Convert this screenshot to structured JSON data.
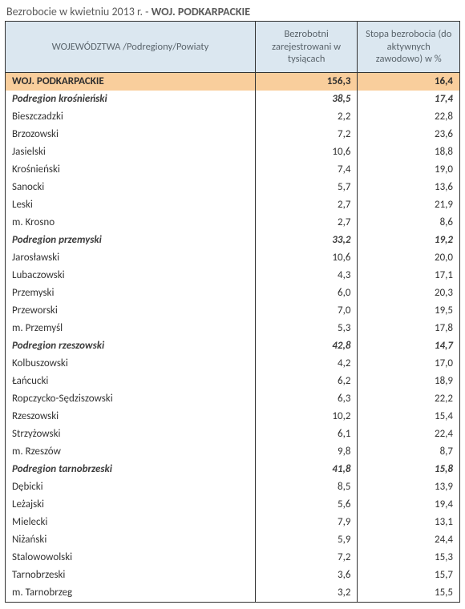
{
  "title_prefix": "Bezrobocie w kwietniu 2013 r. - ",
  "title_region": "WOJ. PODKARPACKIE",
  "columns": [
    "WOJEWÓDZTWA /Podregiony/Powiaty",
    "Bezrobotni zarejestrowani w tysiącach",
    "Stopa bezrobocia (do aktywnych zawodowo) w %"
  ],
  "rows": [
    {
      "type": "region",
      "name": "WOJ. PODKARPACKIE",
      "v1": "156,3",
      "v2": "16,4"
    },
    {
      "type": "sub",
      "name": "Podregion krośnieński",
      "v1": "38,5",
      "v2": "17,4"
    },
    {
      "type": "row",
      "name": "Bieszczadzki",
      "v1": "2,2",
      "v2": "22,8"
    },
    {
      "type": "row",
      "name": "Brzozowski",
      "v1": "7,2",
      "v2": "23,6"
    },
    {
      "type": "row",
      "name": "Jasielski",
      "v1": "10,6",
      "v2": "18,8"
    },
    {
      "type": "row",
      "name": "Krośnieński",
      "v1": "7,4",
      "v2": "19,0"
    },
    {
      "type": "row",
      "name": "Sanocki",
      "v1": "5,7",
      "v2": "13,6"
    },
    {
      "type": "row",
      "name": "Leski",
      "v1": "2,7",
      "v2": "21,9"
    },
    {
      "type": "row",
      "name": "m. Krosno",
      "v1": "2,7",
      "v2": "8,6"
    },
    {
      "type": "sub",
      "name": "Podregion przemyski",
      "v1": "33,2",
      "v2": "19,2"
    },
    {
      "type": "row",
      "name": "Jarosławski",
      "v1": "10,6",
      "v2": "20,0"
    },
    {
      "type": "row",
      "name": "Lubaczowski",
      "v1": "4,3",
      "v2": "17,1"
    },
    {
      "type": "row",
      "name": "Przemyski",
      "v1": "6,0",
      "v2": "20,3"
    },
    {
      "type": "row",
      "name": "Przeworski",
      "v1": "7,0",
      "v2": "19,5"
    },
    {
      "type": "row",
      "name": "m. Przemyśl",
      "v1": "5,3",
      "v2": "17,8"
    },
    {
      "type": "sub",
      "name": "Podregion rzeszowski",
      "v1": "42,8",
      "v2": "14,7"
    },
    {
      "type": "row",
      "name": "Kolbuszowski",
      "v1": "4,2",
      "v2": "17,0"
    },
    {
      "type": "row",
      "name": "Łańcucki",
      "v1": "6,2",
      "v2": "18,9"
    },
    {
      "type": "row",
      "name": "Ropczycko-Sędziszowski",
      "v1": "6,3",
      "v2": "22,2"
    },
    {
      "type": "row",
      "name": "Rzeszowski",
      "v1": "10,2",
      "v2": "15,4"
    },
    {
      "type": "row",
      "name": "Strzyżowski",
      "v1": "6,1",
      "v2": "22,4"
    },
    {
      "type": "row",
      "name": "m. Rzeszów",
      "v1": "9,8",
      "v2": "8,7"
    },
    {
      "type": "sub",
      "name": "Podregion tarnobrzeski",
      "v1": "41,8",
      "v2": "15,8"
    },
    {
      "type": "row",
      "name": "Dębicki",
      "v1": "8,5",
      "v2": "13,9"
    },
    {
      "type": "row",
      "name": "Leżajski",
      "v1": "5,6",
      "v2": "19,4"
    },
    {
      "type": "row",
      "name": "Mielecki",
      "v1": "7,9",
      "v2": "13,1"
    },
    {
      "type": "row",
      "name": "Niżański",
      "v1": "5,9",
      "v2": "24,4"
    },
    {
      "type": "row",
      "name": "Stalowowolski",
      "v1": "7,2",
      "v2": "15,3"
    },
    {
      "type": "row",
      "name": "Tarnobrzeski",
      "v1": "3,6",
      "v2": "15,7"
    },
    {
      "type": "row",
      "name": "m. Tarnobrzeg",
      "v1": "3,2",
      "v2": "15,5"
    }
  ]
}
